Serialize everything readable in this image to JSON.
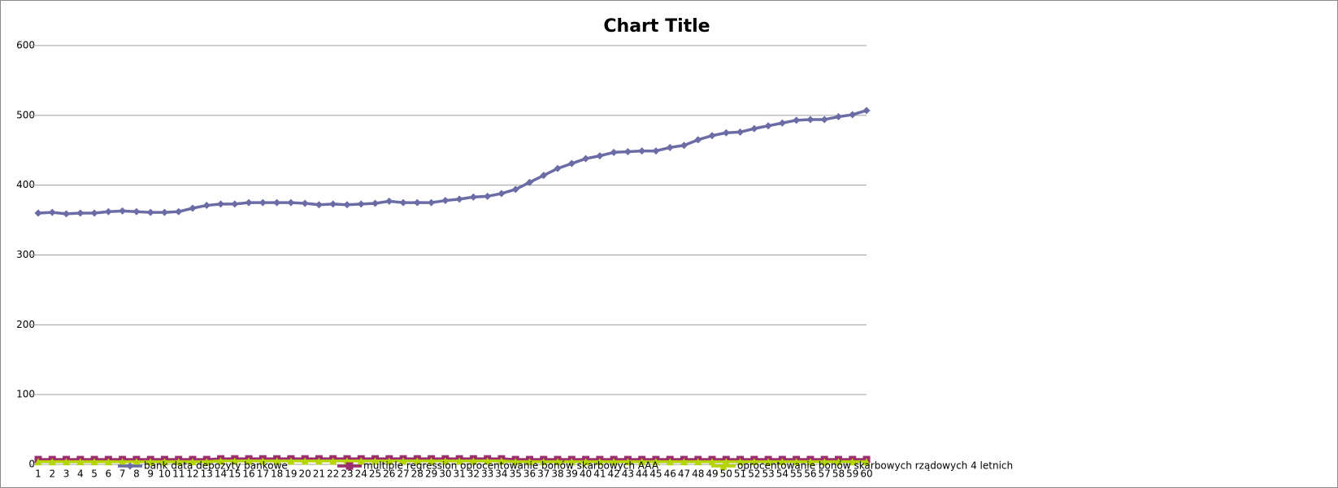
{
  "chart_data": {
    "type": "line",
    "title": "Chart Title",
    "categories": [
      "1",
      "2",
      "3",
      "4",
      "5",
      "6",
      "7",
      "8",
      "9",
      "10",
      "11",
      "12",
      "13",
      "14",
      "15",
      "16",
      "17",
      "18",
      "19",
      "20",
      "21",
      "22",
      "23",
      "24",
      "25",
      "26",
      "27",
      "28",
      "29",
      "30",
      "31",
      "32",
      "33",
      "34",
      "35",
      "36",
      "37",
      "38",
      "39",
      "40",
      "41",
      "42",
      "43",
      "44",
      "45",
      "46",
      "47",
      "48",
      "49",
      "50",
      "51",
      "52",
      "53",
      "54",
      "55",
      "56",
      "57",
      "58",
      "59",
      "60"
    ],
    "series": [
      {
        "name": "bank data  depozyty bankowe",
        "color": "#6b6ba6",
        "marker": "diamond",
        "values": [
          360,
          361,
          359,
          360,
          360,
          362,
          363,
          362,
          361,
          361,
          362,
          367,
          371,
          373,
          373,
          375,
          375,
          375,
          375,
          374,
          372,
          373,
          372,
          373,
          374,
          377,
          375,
          375,
          375,
          378,
          380,
          383,
          384,
          388,
          394,
          404,
          414,
          424,
          431,
          438,
          442,
          447,
          448,
          449,
          449,
          454,
          457,
          465,
          471,
          475,
          476,
          481,
          485,
          489,
          493,
          494,
          494,
          498,
          501,
          507
        ]
      },
      {
        "name": "multiple regression oprocentowanie bonów skarbowych AAA",
        "color": "#9b2d6e",
        "marker": "square",
        "values": [
          7,
          7,
          7,
          7,
          7,
          7,
          7,
          7,
          7,
          7,
          7,
          7,
          7,
          8,
          8,
          8,
          8,
          8,
          8,
          8,
          8,
          8,
          8,
          8,
          8,
          8,
          8,
          8,
          8,
          8,
          8,
          8,
          8,
          8,
          7,
          7,
          7,
          7,
          7,
          7,
          7,
          7,
          7,
          7,
          7,
          7,
          7,
          7,
          7,
          7,
          7,
          7,
          7,
          7,
          7,
          7,
          7,
          7,
          7,
          7
        ]
      },
      {
        "name": "oprocentowanie bonów skarbowych rządowych 4 letnich",
        "color": "#b5d400",
        "marker": "triangle",
        "values": [
          4,
          4,
          4,
          4,
          4,
          4,
          4,
          4,
          4,
          4,
          4,
          4,
          4,
          5,
          5,
          5,
          5,
          5,
          5,
          5,
          5,
          5,
          5,
          5,
          5,
          5,
          5,
          5,
          5,
          5,
          5,
          5,
          5,
          5,
          4,
          4,
          4,
          4,
          4,
          4,
          4,
          4,
          4,
          4,
          4,
          4,
          4,
          4,
          4,
          4,
          4,
          4,
          4,
          4,
          4,
          4,
          4,
          4,
          4,
          4
        ]
      }
    ],
    "ylim": [
      0,
      600
    ],
    "yticks": [
      0,
      100,
      200,
      300,
      400,
      500,
      600
    ],
    "grid": true
  }
}
